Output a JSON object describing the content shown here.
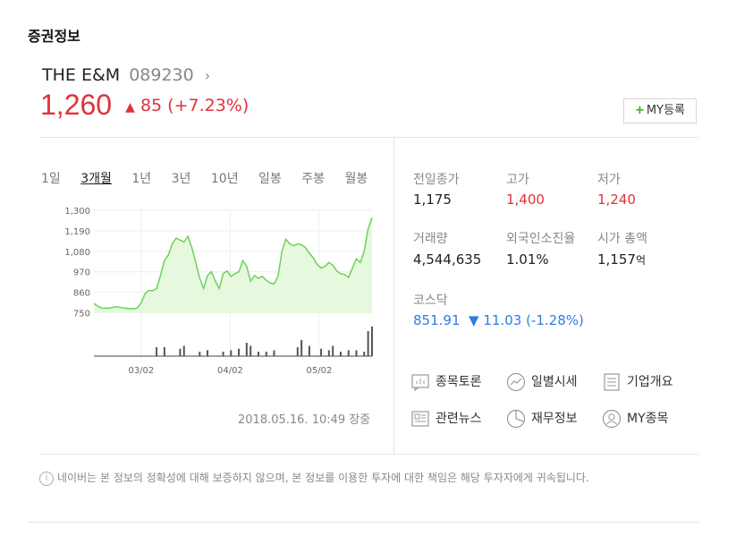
{
  "section_title": "증권정보",
  "stock": {
    "name": "THE E&M",
    "code": "089230",
    "chevron": "›",
    "price": "1,260",
    "change_arrow": "▲",
    "change": "85 (+7.23%)",
    "my_button": "MY등록",
    "my_plus": "+"
  },
  "tabs": [
    {
      "label": "1일",
      "active": false
    },
    {
      "label": "3개월",
      "active": true
    },
    {
      "label": "1년",
      "active": false
    },
    {
      "label": "3년",
      "active": false
    },
    {
      "label": "10년",
      "active": false
    },
    {
      "label": "일봉",
      "active": false
    },
    {
      "label": "주봉",
      "active": false
    },
    {
      "label": "월봉",
      "active": false
    }
  ],
  "chart_data": {
    "type": "area",
    "y_ticks": [
      "1,300",
      "1,190",
      "1,080",
      "970",
      "860",
      "750"
    ],
    "ylim": [
      750,
      1300
    ],
    "x_ticks": [
      "03/02",
      "04/02",
      "05/02"
    ],
    "grid": true,
    "values": [
      800,
      785,
      775,
      775,
      775,
      780,
      782,
      778,
      775,
      772,
      772,
      775,
      800,
      850,
      870,
      868,
      880,
      950,
      1030,
      1060,
      1120,
      1150,
      1140,
      1130,
      1160,
      1100,
      1020,
      935,
      880,
      950,
      970,
      920,
      880,
      960,
      975,
      945,
      960,
      970,
      1030,
      1000,
      920,
      950,
      935,
      945,
      925,
      910,
      905,
      945,
      1080,
      1145,
      1120,
      1110,
      1120,
      1115,
      1100,
      1070,
      1045,
      1010,
      990,
      1000,
      1020,
      1005,
      975,
      960,
      955,
      940,
      990,
      1040,
      1020,
      1080,
      1200,
      1260
    ],
    "volumes": [
      0,
      0,
      0,
      0,
      0,
      0,
      0,
      0,
      0,
      0,
      0,
      0,
      0,
      0,
      0,
      0,
      0,
      0,
      0,
      0,
      0,
      0,
      0,
      0,
      0,
      0,
      0,
      0,
      0,
      0,
      0,
      0,
      0,
      0,
      0,
      0,
      0,
      0,
      0,
      0,
      0,
      0,
      0,
      0,
      0,
      0,
      0,
      0,
      0,
      0,
      0,
      0,
      0,
      0,
      0,
      0,
      0,
      0,
      0,
      0,
      0,
      0,
      0,
      0,
      0,
      0,
      0,
      0,
      0,
      0,
      0,
      0
    ],
    "volume_bars": [
      {
        "i": 16,
        "v": 0.3
      },
      {
        "i": 18,
        "v": 0.3
      },
      {
        "i": 22,
        "v": 0.25
      },
      {
        "i": 23,
        "v": 0.35
      },
      {
        "i": 27,
        "v": 0.15
      },
      {
        "i": 29,
        "v": 0.2
      },
      {
        "i": 33,
        "v": 0.15
      },
      {
        "i": 35,
        "v": 0.2
      },
      {
        "i": 37,
        "v": 0.25
      },
      {
        "i": 39,
        "v": 0.45
      },
      {
        "i": 40,
        "v": 0.35
      },
      {
        "i": 42,
        "v": 0.15
      },
      {
        "i": 44,
        "v": 0.15
      },
      {
        "i": 46,
        "v": 0.2
      },
      {
        "i": 52,
        "v": 0.3
      },
      {
        "i": 53,
        "v": 0.55
      },
      {
        "i": 55,
        "v": 0.35
      },
      {
        "i": 58,
        "v": 0.25
      },
      {
        "i": 60,
        "v": 0.2
      },
      {
        "i": 61,
        "v": 0.35
      },
      {
        "i": 63,
        "v": 0.15
      },
      {
        "i": 65,
        "v": 0.2
      },
      {
        "i": 67,
        "v": 0.2
      },
      {
        "i": 69,
        "v": 0.15
      },
      {
        "i": 70,
        "v": 0.85
      },
      {
        "i": 71,
        "v": 1.0
      }
    ],
    "line_color": "#6cd25a",
    "fill_color": "#e6f8de"
  },
  "timestamp": "2018.05.16. 10:49 장중",
  "info": {
    "prev_close": {
      "label": "전일종가",
      "value": "1,175"
    },
    "high": {
      "label": "고가",
      "value": "1,400"
    },
    "low": {
      "label": "저가",
      "value": "1,240"
    },
    "volume": {
      "label": "거래량",
      "value": "4,544,635"
    },
    "foreign_rate": {
      "label": "외국인소진율",
      "value": "1.01%"
    },
    "market_cap": {
      "label": "시가 총액",
      "value": "1,157",
      "unit": "억"
    },
    "index_name": "코스닥",
    "index_value": "851.91",
    "index_arrow": "▼",
    "index_change": "11.03 (-1.28%)"
  },
  "links": {
    "discussion": "종목토론",
    "daily": "일별시세",
    "company": "기업개요",
    "news": "관련뉴스",
    "finance": "재무정보",
    "my": "MY종목"
  },
  "disclaimer": {
    "icon": "i",
    "text": "네이버는 본 정보의 정확성에 대해 보증하지 않으며, 본 정보를 이용한 투자에 대한 책임은 해당 투자자에게 귀속됩니다."
  },
  "colors": {
    "up": "#e0323b",
    "down": "#2d7de0",
    "accent": "#2db400"
  }
}
